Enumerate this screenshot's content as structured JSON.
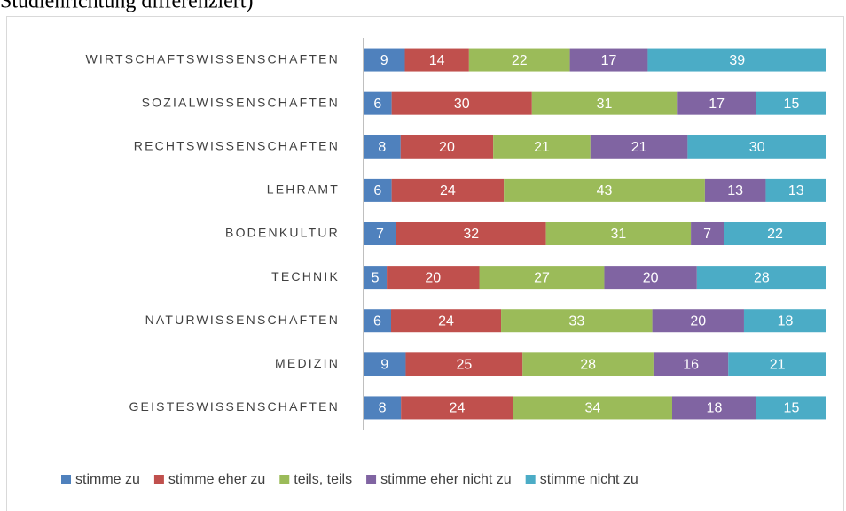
{
  "chart_data": {
    "type": "stacked-bar-100",
    "orientation": "horizontal",
    "title": "Studienrichtung differenziert)",
    "categories": [
      "WIRTSCHAFTSWISSENSCHAFTEN",
      "SOZIALWISSENSCHAFTEN",
      "RECHTSWISSENSCHAFTEN",
      "LEHRAMT",
      "BODENKULTUR",
      "TECHNIK",
      "NATURWISSENSCHAFTEN",
      "MEDIZIN",
      "GEISTESWISSENSCHAFTEN"
    ],
    "series": [
      {
        "name": "stimme zu",
        "color": "#4f81bd",
        "values": [
          9,
          6,
          8,
          6,
          7,
          5,
          6,
          9,
          8
        ]
      },
      {
        "name": "stimme eher zu",
        "color": "#c0504d",
        "values": [
          14,
          30,
          20,
          24,
          32,
          20,
          24,
          25,
          24
        ]
      },
      {
        "name": "teils, teils",
        "color": "#9bbb59",
        "values": [
          22,
          31,
          21,
          43,
          31,
          27,
          33,
          28,
          34
        ]
      },
      {
        "name": "stimme eher nicht zu",
        "color": "#8064a2",
        "values": [
          17,
          17,
          21,
          13,
          7,
          20,
          20,
          16,
          18
        ]
      },
      {
        "name": "stimme nicht zu",
        "color": "#4bacc6",
        "values": [
          39,
          15,
          30,
          13,
          22,
          28,
          18,
          21,
          15
        ]
      }
    ],
    "legend": "bottom"
  }
}
